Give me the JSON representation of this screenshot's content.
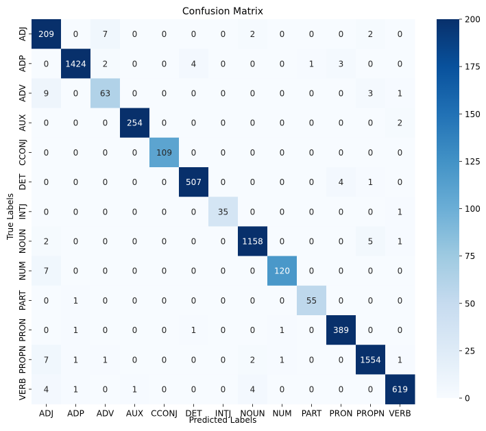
{
  "chart_data": {
    "type": "heatmap",
    "title": "Confusion Matrix",
    "xlabel": "Predicted Labels",
    "ylabel": "True Labels",
    "categories_x": [
      "ADJ",
      "ADP",
      "ADV",
      "AUX",
      "CCONJ",
      "DET",
      "INTJ",
      "NOUN",
      "NUM",
      "PART",
      "PRON",
      "PROPN",
      "VERB"
    ],
    "categories_y": [
      "ADJ",
      "ADP",
      "ADV",
      "AUX",
      "CCONJ",
      "DET",
      "INTJ",
      "NOUN",
      "NUM",
      "PART",
      "PRON",
      "PROPN",
      "VERB"
    ],
    "values": [
      [
        209,
        0,
        7,
        0,
        0,
        0,
        0,
        2,
        0,
        0,
        0,
        2,
        0
      ],
      [
        0,
        1424,
        2,
        0,
        0,
        4,
        0,
        0,
        0,
        1,
        3,
        0,
        0
      ],
      [
        9,
        0,
        63,
        0,
        0,
        0,
        0,
        0,
        0,
        0,
        0,
        3,
        1
      ],
      [
        0,
        0,
        0,
        254,
        0,
        0,
        0,
        0,
        0,
        0,
        0,
        0,
        2
      ],
      [
        0,
        0,
        0,
        0,
        109,
        0,
        0,
        0,
        0,
        0,
        0,
        0,
        0
      ],
      [
        0,
        0,
        0,
        0,
        0,
        507,
        0,
        0,
        0,
        0,
        4,
        1,
        0
      ],
      [
        0,
        0,
        0,
        0,
        0,
        0,
        35,
        0,
        0,
        0,
        0,
        0,
        1
      ],
      [
        2,
        0,
        0,
        0,
        0,
        0,
        0,
        1158,
        0,
        0,
        0,
        5,
        1
      ],
      [
        7,
        0,
        0,
        0,
        0,
        0,
        0,
        0,
        120,
        0,
        0,
        0,
        0
      ],
      [
        0,
        1,
        0,
        0,
        0,
        0,
        0,
        0,
        0,
        55,
        0,
        0,
        0
      ],
      [
        0,
        1,
        0,
        0,
        0,
        1,
        0,
        0,
        1,
        0,
        389,
        0,
        0
      ],
      [
        7,
        1,
        1,
        0,
        0,
        0,
        0,
        2,
        1,
        0,
        0,
        1554,
        1
      ],
      [
        4,
        1,
        0,
        1,
        0,
        0,
        0,
        4,
        0,
        0,
        0,
        0,
        619
      ]
    ],
    "colorbar": {
      "min": 0,
      "max": 200,
      "ticks": [
        0,
        25,
        50,
        75,
        100,
        125,
        150,
        175,
        200
      ],
      "colormap": "Blues",
      "colors": [
        "#f7fbff",
        "#deebf7",
        "#c6dbef",
        "#9ecae1",
        "#6baed6",
        "#4292c6",
        "#2171b5",
        "#08519c",
        "#08306b"
      ]
    }
  }
}
